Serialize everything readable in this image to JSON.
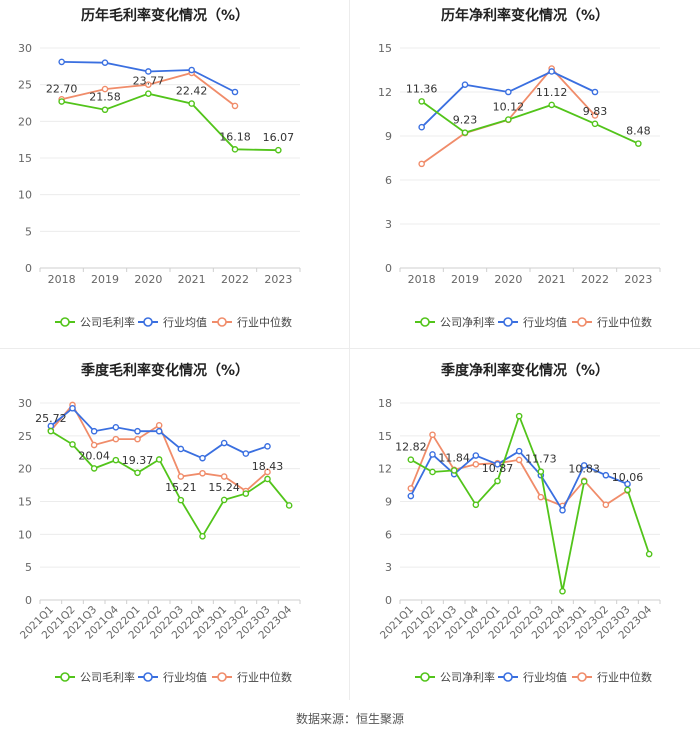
{
  "colors": {
    "company": "#52c41a",
    "industry_avg": "#3a6fe0",
    "industry_median": "#f08c6a"
  },
  "legend": {
    "company_gross": "公司毛利率",
    "company_net": "公司净利率",
    "industry_avg": "行业均值",
    "industry_median": "行业中位数"
  },
  "source": "数据来源：恒生聚源",
  "chart_data": [
    {
      "type": "line",
      "title": "历年毛利率变化情况（%）",
      "categories": [
        "2018",
        "2019",
        "2020",
        "2021",
        "2022",
        "2023"
      ],
      "ylim": [
        0,
        30
      ],
      "yticks": [
        0,
        5,
        10,
        15,
        20,
        25,
        30
      ],
      "legend_position": "bottom",
      "series": [
        {
          "name": "公司毛利率",
          "key": "company",
          "values": [
            22.7,
            21.58,
            23.77,
            22.42,
            16.18,
            16.07
          ],
          "labels": [
            "22.70",
            "21.58",
            "23.77",
            "22.42",
            "16.18",
            "16.07"
          ]
        },
        {
          "name": "行业均值",
          "key": "industry_avg",
          "values": [
            28.1,
            28.0,
            26.8,
            27.0,
            24.0,
            null
          ]
        },
        {
          "name": "行业中位数",
          "key": "industry_median",
          "values": [
            23.0,
            24.4,
            25.0,
            26.6,
            22.1,
            null
          ]
        }
      ]
    },
    {
      "type": "line",
      "title": "历年净利率变化情况（%）",
      "categories": [
        "2018",
        "2019",
        "2020",
        "2021",
        "2022",
        "2023"
      ],
      "ylim": [
        0,
        15
      ],
      "yticks": [
        0,
        3,
        6,
        9,
        12,
        15
      ],
      "legend_position": "bottom",
      "series": [
        {
          "name": "公司净利率",
          "key": "company",
          "values": [
            11.36,
            9.23,
            10.12,
            11.12,
            9.83,
            8.48
          ],
          "labels": [
            "11.36",
            "9.23",
            "10.12",
            "11.12",
            "9.83",
            "8.48"
          ]
        },
        {
          "name": "行业均值",
          "key": "industry_avg",
          "values": [
            9.6,
            12.5,
            12.0,
            13.4,
            12.0,
            null
          ]
        },
        {
          "name": "行业中位数",
          "key": "industry_median",
          "values": [
            7.1,
            9.2,
            10.1,
            13.6,
            10.4,
            null
          ]
        }
      ]
    },
    {
      "type": "line",
      "title": "季度毛利率变化情况（%）",
      "categories": [
        "2021Q1",
        "2021Q2",
        "2021Q3",
        "2021Q4",
        "2022Q1",
        "2022Q2",
        "2022Q3",
        "2022Q4",
        "2023Q1",
        "2023Q2",
        "2023Q3",
        "2023Q4"
      ],
      "ylim": [
        0,
        30
      ],
      "yticks": [
        0,
        5,
        10,
        15,
        20,
        25,
        30
      ],
      "legend_position": "bottom",
      "series": [
        {
          "name": "公司毛利率",
          "key": "company",
          "values": [
            25.72,
            23.7,
            20.04,
            21.3,
            19.37,
            21.4,
            15.21,
            9.7,
            15.24,
            16.2,
            18.43,
            14.4
          ],
          "labels": [
            "25.72",
            "",
            "20.04",
            "",
            "19.37",
            "",
            "15.21",
            "",
            "15.24",
            "",
            "18.43",
            ""
          ]
        },
        {
          "name": "行业均值",
          "key": "industry_avg",
          "values": [
            26.5,
            29.2,
            25.7,
            26.3,
            25.7,
            25.7,
            23.0,
            21.6,
            23.9,
            22.3,
            23.4,
            null
          ]
        },
        {
          "name": "行业中位数",
          "key": "industry_median",
          "values": [
            25.8,
            29.7,
            23.6,
            24.5,
            24.5,
            26.6,
            18.8,
            19.3,
            18.8,
            16.6,
            19.5,
            null
          ]
        }
      ]
    },
    {
      "type": "line",
      "title": "季度净利率变化情况（%）",
      "categories": [
        "2021Q1",
        "2021Q2",
        "2021Q3",
        "2021Q4",
        "2022Q1",
        "2022Q2",
        "2022Q3",
        "2022Q4",
        "2023Q1",
        "2023Q2",
        "2023Q3",
        "2023Q4"
      ],
      "ylim": [
        0,
        18
      ],
      "yticks": [
        0,
        3,
        6,
        9,
        12,
        15,
        18
      ],
      "legend_position": "bottom",
      "series": [
        {
          "name": "公司净利率",
          "key": "company",
          "values": [
            12.82,
            11.7,
            11.84,
            8.7,
            10.87,
            16.8,
            11.73,
            0.8,
            10.83,
            null,
            10.06,
            4.2
          ],
          "labels": [
            "12.82",
            "",
            "11.84",
            "",
            "10.87",
            "",
            "11.73",
            "",
            "10.83",
            "",
            "10.06",
            ""
          ]
        },
        {
          "name": "行业均值",
          "key": "industry_avg",
          "values": [
            9.5,
            13.3,
            11.5,
            13.2,
            12.4,
            13.6,
            11.4,
            8.2,
            12.3,
            11.4,
            10.6,
            null
          ]
        },
        {
          "name": "行业中位数",
          "key": "industry_median",
          "values": [
            10.2,
            15.1,
            11.9,
            12.4,
            12.5,
            12.8,
            9.4,
            8.6,
            10.9,
            8.7,
            10.0,
            null
          ]
        }
      ]
    }
  ]
}
